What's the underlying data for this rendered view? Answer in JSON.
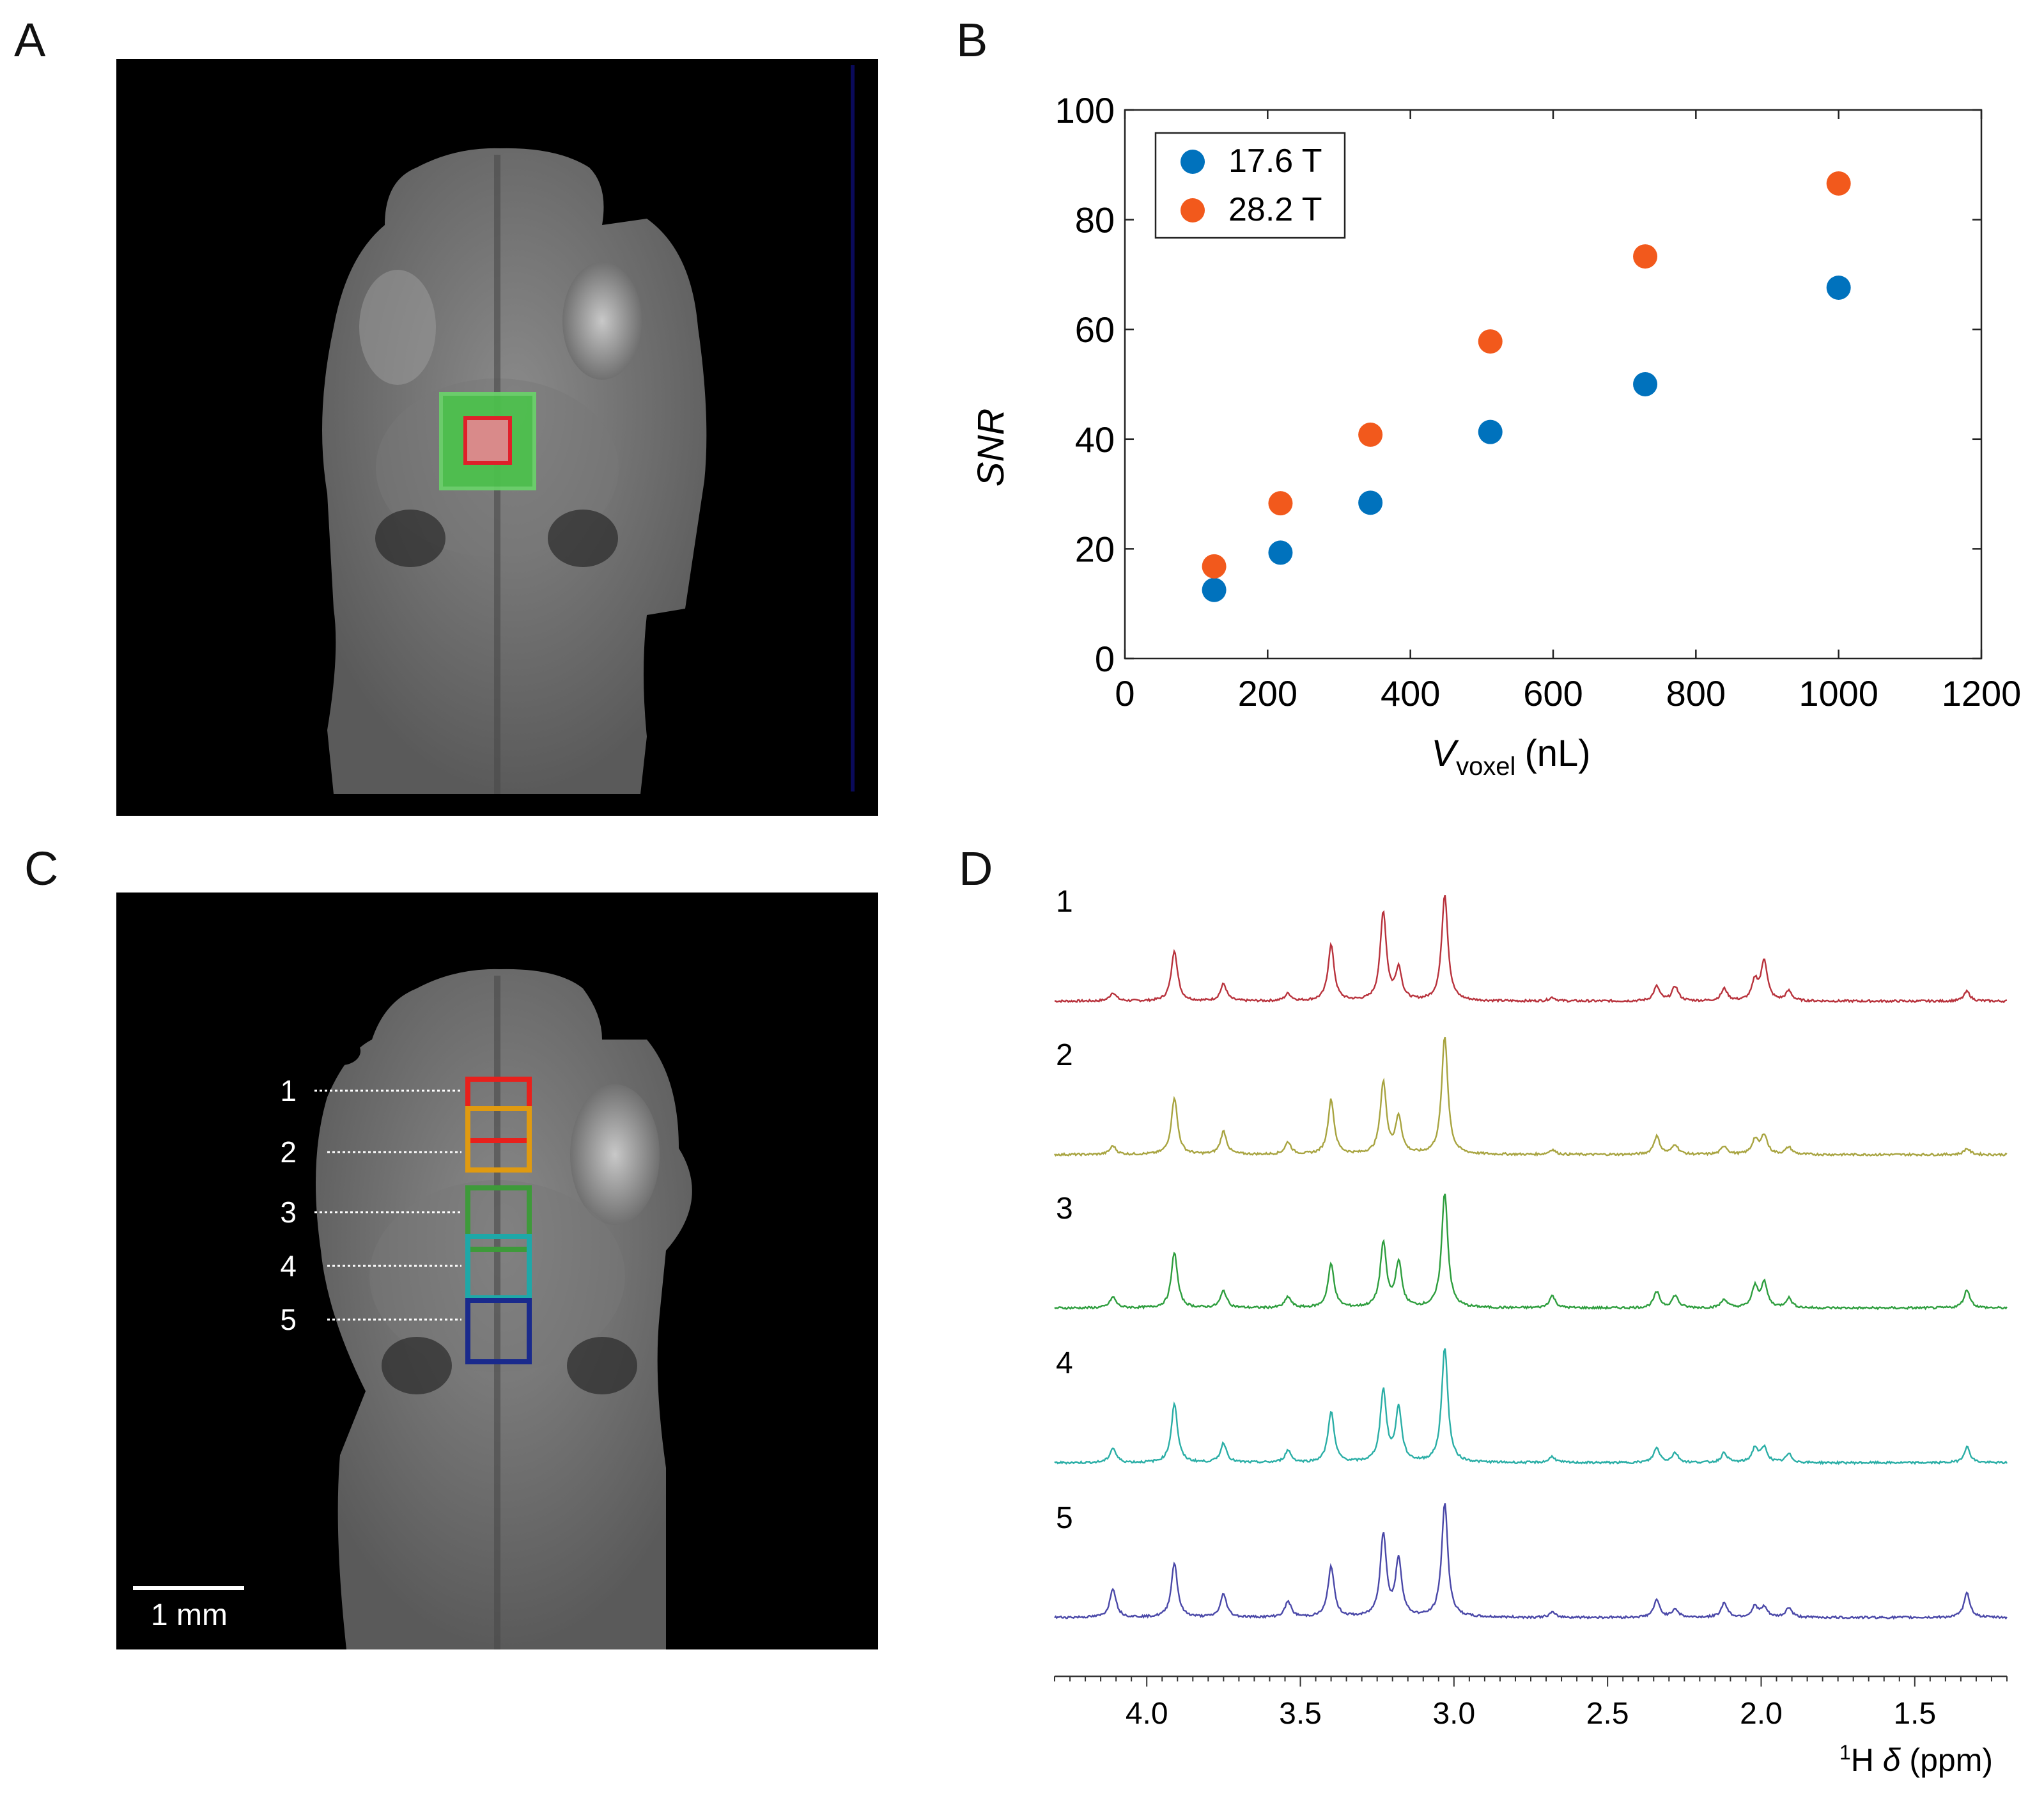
{
  "panels": {
    "a": "A",
    "b": "B",
    "c": "C",
    "d": "D"
  },
  "colors": {
    "s176": "#0072BD",
    "s282": "#F2591C",
    "roi_outer": "#4CC34C",
    "roi_inner": "#E0202A",
    "voxels": [
      "#E8201C",
      "#E09A10",
      "#3E9A3A",
      "#1EA8A8",
      "#1A2A8C"
    ],
    "spectra": [
      "#B8323C",
      "#A8A440",
      "#2E9E3E",
      "#2AAEA6",
      "#4A48A8"
    ]
  },
  "chart_data": [
    {
      "type": "scatter",
      "title": "",
      "xlabel_main": "V",
      "xlabel_sub": "voxel",
      "xlabel_unit": "(nL)",
      "ylabel": "SNR",
      "xlim": [
        0,
        1200
      ],
      "ylim": [
        0,
        100
      ],
      "xticks": [
        "0",
        "200",
        "400",
        "600",
        "800",
        "1000",
        "1200"
      ],
      "yticks": [
        "0",
        "20",
        "40",
        "60",
        "80",
        "100"
      ],
      "legend_position": "top-left",
      "series": [
        {
          "name": "17.6 T",
          "x": [
            125,
            218,
            344,
            512,
            729,
            1000
          ],
          "y": [
            12.5,
            19.3,
            28.4,
            41.3,
            50.0,
            67.6
          ]
        },
        {
          "name": "28.2 T",
          "x": [
            125,
            218,
            344,
            512,
            729,
            1000
          ],
          "y": [
            16.8,
            28.3,
            40.8,
            57.8,
            73.3,
            86.6
          ]
        }
      ]
    },
    {
      "type": "line",
      "title": "",
      "xlabel_pre": "1",
      "xlabel_nucleus": "H",
      "xlabel_delta": "δ",
      "xlabel_unit": "(ppm)",
      "xlim": [
        4.3,
        1.2
      ],
      "xticks": [
        "4.0",
        "3.5",
        "3.0",
        "2.5",
        "2.0",
        "1.5"
      ],
      "legend_position": "none",
      "series_labels": [
        "1",
        "2",
        "3",
        "4",
        "5"
      ],
      "peaks": [
        {
          "ppm": 4.11,
          "h": [
            0.07,
            0.07,
            0.09,
            0.12,
            0.24
          ]
        },
        {
          "ppm": 3.91,
          "h": [
            0.42,
            0.47,
            0.46,
            0.49,
            0.45
          ]
        },
        {
          "ppm": 3.75,
          "h": [
            0.14,
            0.19,
            0.14,
            0.16,
            0.19
          ]
        },
        {
          "ppm": 3.54,
          "h": [
            0.06,
            0.1,
            0.09,
            0.1,
            0.13
          ]
        },
        {
          "ppm": 3.4,
          "h": [
            0.46,
            0.45,
            0.36,
            0.42,
            0.42
          ]
        },
        {
          "ppm": 3.23,
          "h": [
            0.73,
            0.59,
            0.53,
            0.59,
            0.68
          ]
        },
        {
          "ppm": 3.18,
          "h": [
            0.26,
            0.3,
            0.37,
            0.44,
            0.47
          ]
        },
        {
          "ppm": 3.03,
          "h": [
            0.88,
            0.97,
            0.95,
            0.95,
            0.94
          ]
        },
        {
          "ppm": 2.68,
          "h": [
            0.03,
            0.04,
            0.1,
            0.05,
            0.04
          ]
        },
        {
          "ppm": 2.34,
          "h": [
            0.12,
            0.15,
            0.13,
            0.12,
            0.14
          ]
        },
        {
          "ppm": 2.28,
          "h": [
            0.12,
            0.08,
            0.1,
            0.08,
            0.07
          ]
        },
        {
          "ppm": 2.12,
          "h": [
            0.1,
            0.07,
            0.07,
            0.08,
            0.12
          ]
        },
        {
          "ppm": 2.02,
          "h": [
            0.16,
            0.12,
            0.17,
            0.12,
            0.09
          ]
        },
        {
          "ppm": 1.99,
          "h": [
            0.33,
            0.16,
            0.2,
            0.12,
            0.08
          ]
        },
        {
          "ppm": 1.91,
          "h": [
            0.08,
            0.06,
            0.08,
            0.07,
            0.08
          ]
        },
        {
          "ppm": 1.33,
          "h": [
            0.08,
            0.05,
            0.15,
            0.13,
            0.2
          ]
        }
      ]
    }
  ],
  "panel_c": {
    "voxel_labels": [
      "1",
      "2",
      "3",
      "4",
      "5"
    ],
    "scale_bar": "1 mm"
  }
}
